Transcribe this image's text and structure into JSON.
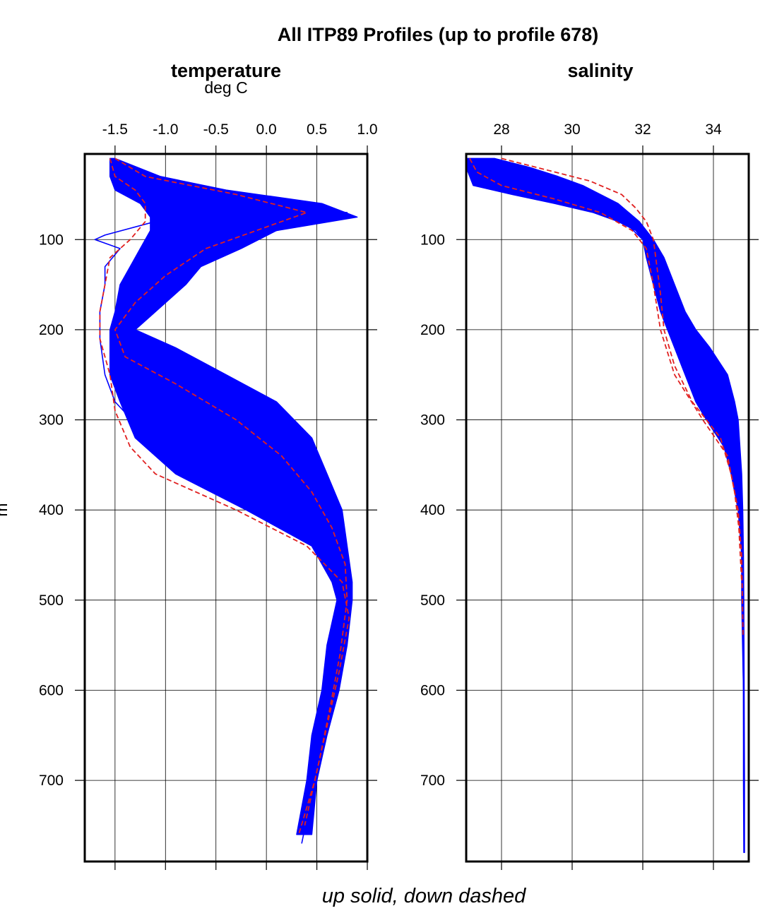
{
  "chart_data": {
    "type": "line",
    "title": "All ITP89 Profiles (up to profile 678)",
    "footer": "up solid, down dashed",
    "y_axis": {
      "label": "m",
      "ticks": [
        100,
        200,
        300,
        400,
        500,
        600,
        700
      ],
      "tick_labels": [
        "100",
        "200",
        "300",
        "400",
        "500",
        "600",
        "700"
      ],
      "range": [
        5,
        790
      ],
      "inverted": true
    },
    "panels": [
      {
        "name": "temperature",
        "title": "temperature",
        "units": "deg C",
        "x_ticks": [
          -1.5,
          -1.0,
          -0.5,
          0.0,
          0.5,
          1.0
        ],
        "x_tick_labels": [
          "-1.5",
          "-1.0",
          "-0.5",
          "0.0",
          "0.5",
          "1.0"
        ],
        "x_range": [
          -1.8,
          1.0
        ],
        "grid": true,
        "band": {
          "depth": [
            10,
            30,
            45,
            60,
            75,
            90,
            110,
            130,
            150,
            180,
            200,
            220,
            250,
            280,
            320,
            360,
            400,
            440,
            480,
            500,
            550,
            600,
            650,
            700,
            760
          ],
          "min": [
            -1.55,
            -1.55,
            -1.5,
            -1.25,
            -1.15,
            -1.15,
            -1.25,
            -1.35,
            -1.45,
            -1.5,
            -1.55,
            -1.55,
            -1.55,
            -1.45,
            -1.3,
            -0.9,
            -0.2,
            0.45,
            0.65,
            0.7,
            0.6,
            0.55,
            0.45,
            0.4,
            0.3
          ],
          "max": [
            -1.5,
            -1.05,
            -0.4,
            0.55,
            0.9,
            0.1,
            -0.25,
            -0.65,
            -0.8,
            -1.1,
            -1.3,
            -0.9,
            -0.4,
            0.1,
            0.45,
            0.6,
            0.75,
            0.8,
            0.85,
            0.85,
            0.8,
            0.72,
            0.6,
            0.5,
            0.45
          ]
        },
        "series": [
          {
            "style": "up solid",
            "color": "#0000ff",
            "depth": [
              10,
              30,
              50,
              70,
              90,
              110,
              130,
              150,
              170,
              200,
              230,
              260,
              290,
              320,
              350,
              380,
              420,
              460,
              500,
              550,
              600,
              650,
              700,
              760
            ],
            "values": [
              -1.5,
              -1.4,
              -0.6,
              0.3,
              -0.35,
              -0.75,
              -1.0,
              -1.2,
              -1.35,
              -1.45,
              -1.3,
              -0.8,
              -0.3,
              0.05,
              0.3,
              0.5,
              0.65,
              0.75,
              0.78,
              0.72,
              0.65,
              0.55,
              0.47,
              0.38
            ]
          },
          {
            "style": "up solid",
            "color": "#0000ff",
            "depth": [
              10,
              30,
              50,
              70,
              90,
              110,
              130,
              150,
              170,
              200,
              230,
              260,
              290,
              320,
              350,
              380,
              420,
              460,
              500,
              550,
              600,
              650,
              700,
              760
            ],
            "values": [
              -1.55,
              -1.5,
              -1.0,
              0.8,
              0.1,
              -0.5,
              -0.9,
              -1.15,
              -1.35,
              -1.5,
              -1.45,
              -1.1,
              -0.7,
              -0.35,
              0.0,
              0.35,
              0.6,
              0.72,
              0.8,
              0.74,
              0.68,
              0.58,
              0.5,
              0.4
            ]
          },
          {
            "style": "up solid",
            "color": "#0000ff",
            "depth": [
              10,
              30,
              45,
              65,
              80,
              95,
              100,
              110,
              130,
              150,
              180,
              210,
              250,
              280,
              310,
              340,
              370,
              400,
              440,
              480,
              520,
              580,
              640,
              700,
              770
            ],
            "values": [
              -1.5,
              -1.45,
              -1.2,
              -0.6,
              -1.1,
              -1.6,
              -1.7,
              -1.45,
              -1.6,
              -1.6,
              -1.65,
              -1.65,
              -1.6,
              -1.5,
              -1.25,
              -1.0,
              -0.4,
              0.2,
              0.5,
              0.7,
              0.75,
              0.68,
              0.6,
              0.48,
              0.35
            ]
          },
          {
            "style": "down dashed",
            "color": "#e02020",
            "depth": [
              10,
              30,
              45,
              60,
              80,
              100,
              120,
              150,
              180,
              210,
              250,
              290,
              330,
              360,
              400,
              440,
              480,
              520,
              580,
              640,
              700,
              760
            ],
            "values": [
              -1.55,
              -1.5,
              -1.3,
              -1.2,
              -1.2,
              -1.35,
              -1.55,
              -1.6,
              -1.65,
              -1.65,
              -1.55,
              -1.5,
              -1.35,
              -1.1,
              -0.3,
              0.4,
              0.75,
              0.82,
              0.72,
              0.6,
              0.48,
              0.32
            ]
          },
          {
            "style": "down dashed",
            "color": "#e02020",
            "depth": [
              10,
              30,
              50,
              70,
              90,
              110,
              140,
              170,
              200,
              230,
              260,
              300,
              340,
              380,
              420,
              460,
              500,
              560,
              620,
              680,
              750
            ],
            "values": [
              -1.5,
              -1.2,
              -0.3,
              0.4,
              -0.1,
              -0.6,
              -1.0,
              -1.3,
              -1.5,
              -1.4,
              -0.9,
              -0.3,
              0.15,
              0.45,
              0.65,
              0.78,
              0.8,
              0.73,
              0.63,
              0.52,
              0.38
            ]
          }
        ]
      },
      {
        "name": "salinity",
        "title": "salinity",
        "units": "",
        "x_ticks": [
          28,
          30,
          32,
          34
        ],
        "x_tick_labels": [
          "28",
          "30",
          "32",
          "34"
        ],
        "x_range": [
          27.0,
          35.0
        ],
        "grid": true,
        "band": {
          "depth": [
            10,
            20,
            30,
            40,
            50,
            60,
            70,
            80,
            90,
            100,
            120,
            150,
            180,
            200,
            220,
            250,
            280,
            300,
            330,
            360,
            400,
            450,
            500,
            600,
            700,
            780
          ],
          "min": [
            27.0,
            27.0,
            27.1,
            27.2,
            28.3,
            29.5,
            30.6,
            31.3,
            31.8,
            32.0,
            32.1,
            32.3,
            32.5,
            32.7,
            32.9,
            33.2,
            33.5,
            33.8,
            34.3,
            34.5,
            34.7,
            34.8,
            34.8,
            34.85,
            34.85,
            34.86
          ],
          "max": [
            27.8,
            28.8,
            29.6,
            30.3,
            30.8,
            31.3,
            31.6,
            31.9,
            32.1,
            32.3,
            32.6,
            32.9,
            33.2,
            33.5,
            33.9,
            34.4,
            34.6,
            34.7,
            34.75,
            34.8,
            34.83,
            34.85,
            34.86,
            34.87,
            34.88,
            34.88
          ]
        },
        "series": [
          {
            "style": "up solid",
            "color": "#0000ff",
            "depth": [
              10,
              25,
              40,
              55,
              70,
              85,
              100,
              130,
              160,
              200,
              230,
              260,
              300,
              350,
              400,
              450,
              500,
              600,
              700,
              780
            ],
            "values": [
              27.3,
              27.5,
              28.2,
              29.8,
              30.9,
              31.6,
              32.0,
              32.3,
              32.6,
              33.0,
              33.6,
              34.2,
              34.5,
              34.65,
              34.75,
              34.8,
              34.82,
              34.85,
              34.86,
              34.87
            ]
          },
          {
            "style": "down dashed",
            "color": "#e02020",
            "depth": [
              10,
              25,
              35,
              50,
              65,
              80,
              100,
              130,
              160,
              200,
              240,
              280,
              320,
              360,
              400,
              450,
              500,
              540
            ],
            "values": [
              28.0,
              29.5,
              30.5,
              31.4,
              31.8,
              32.1,
              32.3,
              32.4,
              32.5,
              32.6,
              32.9,
              33.4,
              34.2,
              34.5,
              34.7,
              34.8,
              34.82,
              34.84
            ]
          },
          {
            "style": "down dashed",
            "color": "#e02020",
            "depth": [
              10,
              25,
              40,
              55,
              70,
              90,
              110,
              150,
              200,
              250,
              300,
              340,
              380,
              420,
              480
            ],
            "values": [
              27.1,
              27.3,
              28.0,
              29.5,
              30.8,
              31.7,
              32.1,
              32.3,
              32.5,
              32.9,
              33.7,
              34.4,
              34.6,
              34.72,
              34.8
            ]
          }
        ]
      }
    ]
  }
}
